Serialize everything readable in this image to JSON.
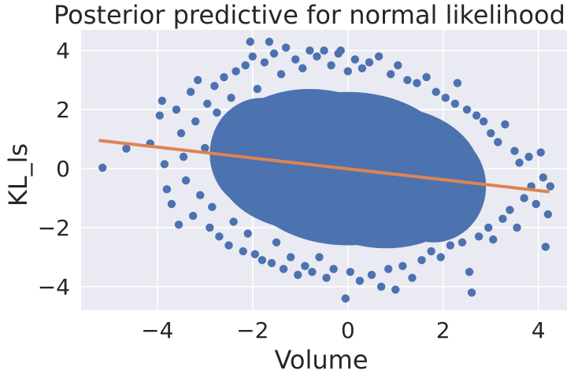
{
  "chart_data": {
    "type": "scatter",
    "title": "Posterior predictive for normal likelihood",
    "xlabel": "Volume",
    "ylabel": "KL_ls",
    "xlim": [
      -5.6,
      4.6
    ],
    "ylim": [
      -4.8,
      4.7
    ],
    "x_ticks": [
      -4,
      -2,
      0,
      2,
      4
    ],
    "y_ticks": [
      -4,
      -2,
      0,
      2,
      4
    ],
    "x_tick_labels": [
      "−4",
      "−2",
      "0",
      "2",
      "4"
    ],
    "y_tick_labels": [
      "−4",
      "−2",
      "0",
      "2",
      "4"
    ],
    "grid": true,
    "background": "#eaeaf2",
    "grid_color": "#ffffff",
    "scatter_color": "#4c72b0",
    "line_color": "#dd8452",
    "series": [
      {
        "kind": "scatter",
        "description": "dense cloud of observations",
        "points": [
          [
            -5.15,
            0.03
          ],
          [
            -4.65,
            0.68
          ],
          [
            -4.15,
            0.85
          ],
          [
            -3.95,
            1.8
          ],
          [
            -3.9,
            2.3
          ],
          [
            -3.85,
            0.15
          ],
          [
            -3.8,
            -0.7
          ],
          [
            -3.7,
            -1.2
          ],
          [
            -3.6,
            2.0
          ],
          [
            -3.55,
            -1.9
          ],
          [
            -3.5,
            1.2
          ],
          [
            -3.45,
            0.4
          ],
          [
            -3.4,
            -0.4
          ],
          [
            -3.3,
            2.6
          ],
          [
            -3.25,
            -1.6
          ],
          [
            -3.2,
            1.6
          ],
          [
            -3.15,
            3.0
          ],
          [
            -3.1,
            -0.9
          ],
          [
            -3.0,
            0.7
          ],
          [
            -2.95,
            2.2
          ],
          [
            -2.9,
            -2.0
          ],
          [
            -2.85,
            -1.3
          ],
          [
            -2.8,
            2.8
          ],
          [
            -2.75,
            1.9
          ],
          [
            -2.7,
            -2.3
          ],
          [
            -2.65,
            0.1
          ],
          [
            -2.6,
            3.1
          ],
          [
            -2.5,
            -2.6
          ],
          [
            -2.45,
            2.4
          ],
          [
            -2.4,
            -1.8
          ],
          [
            -2.35,
            3.3
          ],
          [
            -2.3,
            0.9
          ],
          [
            -2.2,
            -2.8
          ],
          [
            -2.15,
            3.5
          ],
          [
            -2.1,
            -2.2
          ],
          [
            -2.05,
            4.3
          ],
          [
            -2.0,
            3.8
          ],
          [
            -1.95,
            -2.9
          ],
          [
            -1.9,
            2.7
          ],
          [
            -1.8,
            -3.1
          ],
          [
            -1.75,
            3.6
          ],
          [
            -1.65,
            4.3
          ],
          [
            -1.6,
            -3.2
          ],
          [
            -1.55,
            3.9
          ],
          [
            -1.5,
            -2.5
          ],
          [
            -1.4,
            3.2
          ],
          [
            -1.35,
            -3.4
          ],
          [
            -1.3,
            4.1
          ],
          [
            -1.2,
            -3.0
          ],
          [
            -1.1,
            3.7
          ],
          [
            -1.05,
            -3.6
          ],
          [
            -0.95,
            3.4
          ],
          [
            -0.9,
            -3.3
          ],
          [
            -0.8,
            4.0
          ],
          [
            -0.75,
            -3.5
          ],
          [
            -0.65,
            3.8
          ],
          [
            -0.6,
            -3.0
          ],
          [
            -0.5,
            4.0
          ],
          [
            -0.45,
            -3.7
          ],
          [
            -0.35,
            3.5
          ],
          [
            -0.3,
            -3.4
          ],
          [
            -0.2,
            3.9
          ],
          [
            -0.15,
            4.0
          ],
          [
            -0.05,
            -4.4
          ],
          [
            0.0,
            3.3
          ],
          [
            0.05,
            -3.5
          ],
          [
            0.15,
            3.7
          ],
          [
            0.25,
            -3.8
          ],
          [
            0.3,
            3.4
          ],
          [
            0.45,
            3.6
          ],
          [
            0.5,
            -3.6
          ],
          [
            0.65,
            3.8
          ],
          [
            0.7,
            -4.0
          ],
          [
            0.85,
            -3.4
          ],
          [
            0.9,
            3.2
          ],
          [
            1.0,
            -4.1
          ],
          [
            1.05,
            3.5
          ],
          [
            1.15,
            -3.3
          ],
          [
            1.25,
            3.0
          ],
          [
            1.35,
            -3.7
          ],
          [
            1.45,
            2.9
          ],
          [
            1.55,
            -3.1
          ],
          [
            1.65,
            3.1
          ],
          [
            1.75,
            -2.8
          ],
          [
            1.85,
            2.6
          ],
          [
            1.95,
            -3.0
          ],
          [
            2.05,
            2.4
          ],
          [
            2.15,
            -2.6
          ],
          [
            2.25,
            2.2
          ],
          [
            2.3,
            2.9
          ],
          [
            2.4,
            -2.5
          ],
          [
            2.5,
            2.0
          ],
          [
            2.55,
            -3.5
          ],
          [
            2.6,
            -4.2
          ],
          [
            2.7,
            1.8
          ],
          [
            2.75,
            -2.3
          ],
          [
            2.85,
            1.6
          ],
          [
            2.95,
            -2.0
          ],
          [
            3.0,
            1.2
          ],
          [
            3.05,
            -2.4
          ],
          [
            3.15,
            0.9
          ],
          [
            3.25,
            -1.7
          ],
          [
            3.3,
            1.5
          ],
          [
            3.4,
            -1.4
          ],
          [
            3.5,
            0.6
          ],
          [
            3.55,
            -2.0
          ],
          [
            3.6,
            0.2
          ],
          [
            3.7,
            -1.0
          ],
          [
            3.8,
            0.4
          ],
          [
            3.85,
            -0.6
          ],
          [
            3.95,
            -1.2
          ],
          [
            4.05,
            0.55
          ],
          [
            4.1,
            -0.3
          ],
          [
            4.15,
            -2.65
          ],
          [
            4.2,
            -1.55
          ],
          [
            4.25,
            -0.6
          ]
        ]
      },
      {
        "kind": "line",
        "description": "posterior mean regression line",
        "x": [
          -5.2,
          4.2
        ],
        "y": [
          0.95,
          -0.78
        ]
      }
    ]
  }
}
